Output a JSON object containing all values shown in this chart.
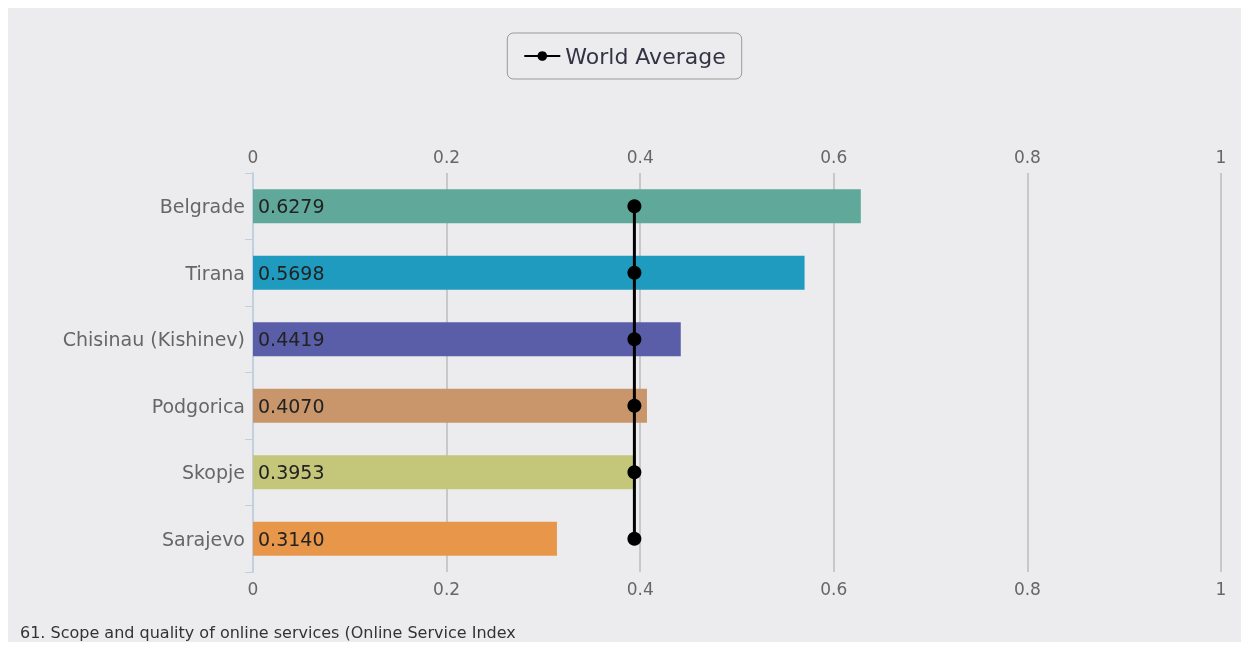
{
  "chart_data": {
    "type": "bar",
    "orientation": "horizontal",
    "categories": [
      "Belgrade",
      "Tirana",
      "Chisinau (Kishinev)",
      "Podgorica",
      "Skopje",
      "Sarajevo"
    ],
    "series": [
      {
        "colors": [
          "#5fa89a",
          "#1f9bbf",
          "#5a5ea8",
          "#c8966a",
          "#c4c67a",
          "#e8974a"
        ],
        "values": [
          0.6279,
          0.5698,
          0.4419,
          0.407,
          0.3953,
          0.314
        ],
        "value_labels": [
          "0.6279",
          "0.5698",
          "0.4419",
          "0.4070",
          "0.3953",
          "0.3140"
        ]
      },
      {
        "type": "line",
        "name": "World Average",
        "color": "#000000",
        "marker": "circle",
        "values": [
          0.394,
          0.394,
          0.394,
          0.394,
          0.394,
          0.394
        ]
      }
    ],
    "xlim": [
      0,
      1
    ],
    "xticks": [
      0,
      0.2,
      0.4,
      0.6,
      0.8,
      1
    ],
    "x2lim": [
      0,
      1
    ],
    "x2ticks": [
      0,
      0.2,
      0.4,
      0.6,
      0.8,
      1
    ],
    "grid": "x",
    "legend": "top",
    "annotations": [
      "61. Scope and quality of online services (Online Service Index"
    ]
  }
}
